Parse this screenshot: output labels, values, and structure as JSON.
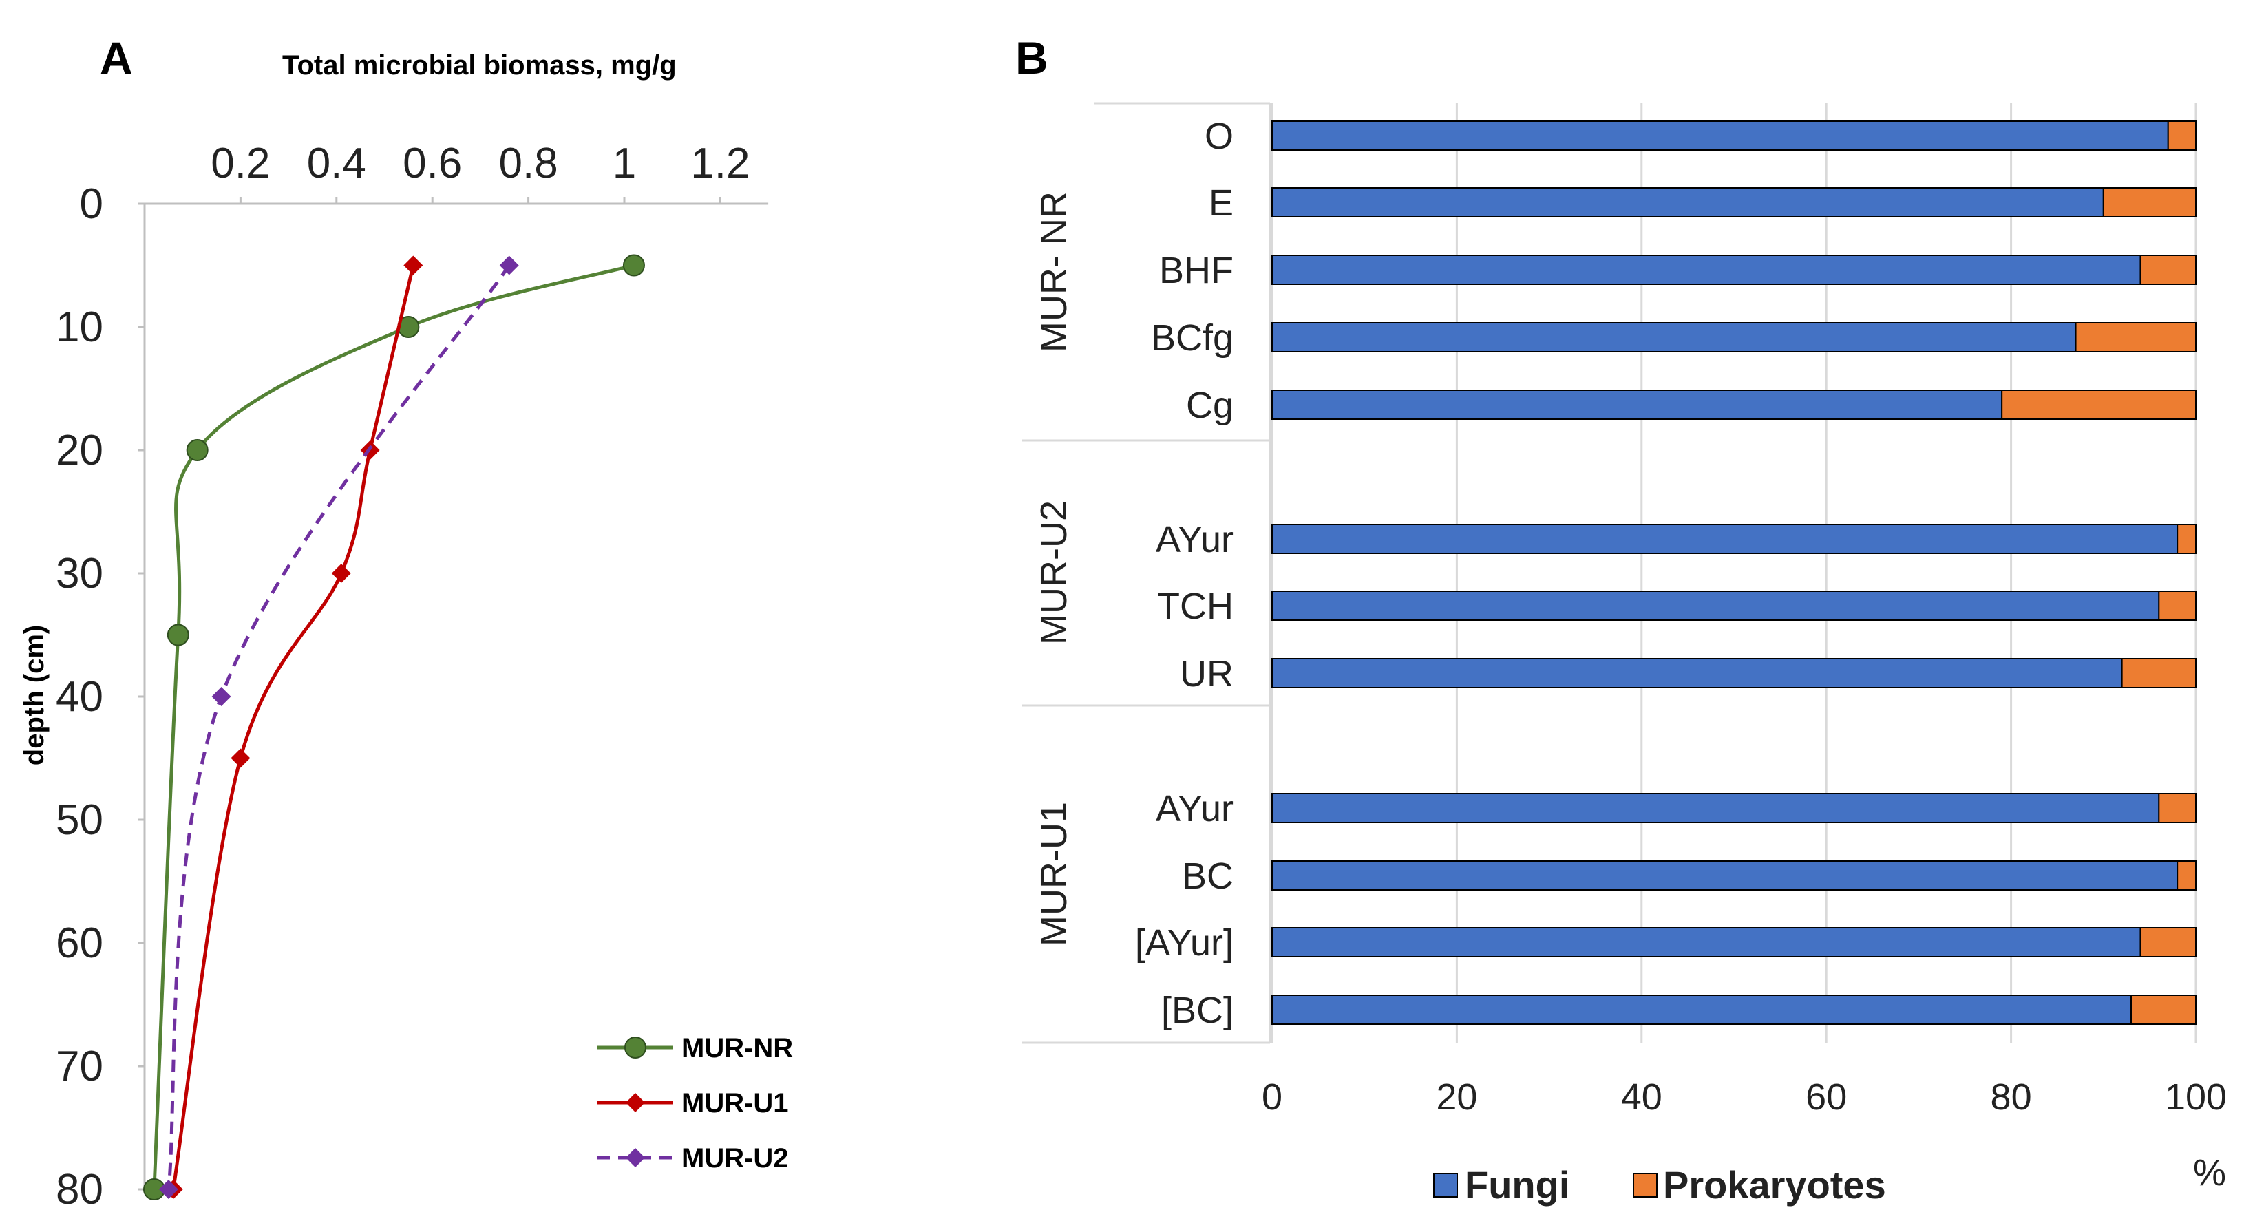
{
  "chart_data": [
    {
      "panel": "A",
      "type": "line",
      "title": "Total microbial biomass, mg/g",
      "xlabel": "Total microbial biomass, mg/g",
      "ylabel": "depth (cm)",
      "xlim": [
        0,
        1.3
      ],
      "ylim": [
        0,
        80
      ],
      "x_ticks": [
        "0.2",
        "0.4",
        "0.6",
        "0.8",
        "1",
        "1.2"
      ],
      "y_ticks": [
        "0",
        "10",
        "20",
        "30",
        "40",
        "50",
        "60",
        "70",
        "80"
      ],
      "grid": false,
      "legend_position": "bottom-right",
      "series": [
        {
          "name": "MUR-NR",
          "color": "#548235",
          "marker": "circle",
          "dash": "solid",
          "depth": [
            5,
            10,
            20,
            35,
            80
          ],
          "biomass": [
            1.02,
            0.55,
            0.11,
            0.07,
            0.02
          ]
        },
        {
          "name": "MUR-U1",
          "color": "#c00000",
          "marker": "diamond",
          "dash": "solid",
          "depth": [
            5,
            20,
            30,
            45,
            80
          ],
          "biomass": [
            0.56,
            0.47,
            0.41,
            0.2,
            0.06
          ]
        },
        {
          "name": "MUR-U2",
          "color": "#7030a0",
          "marker": "diamond",
          "dash": "dashed",
          "depth": [
            5,
            40,
            80
          ],
          "biomass": [
            0.76,
            0.16,
            0.05
          ]
        }
      ]
    },
    {
      "panel": "B",
      "type": "bar",
      "orientation": "horizontal-stacked",
      "xlabel": "%",
      "xlim": [
        0,
        100
      ],
      "x_ticks": [
        "0",
        "20",
        "40",
        "60",
        "80",
        "100"
      ],
      "grid": true,
      "legend_position": "bottom",
      "groups": [
        {
          "name": "MUR- NR",
          "categories": [
            "O",
            "E",
            "BHF",
            "BCfg",
            "Cg"
          ]
        },
        {
          "name": "MUR-U2",
          "categories": [
            "AYur",
            "TCH",
            "UR"
          ]
        },
        {
          "name": "MUR-U1",
          "categories": [
            "AYur",
            "BC",
            "[AYur]",
            "[BC]"
          ]
        }
      ],
      "series": [
        {
          "name": "Fungi",
          "color": "#4472c4",
          "values": [
            [
              97,
              90,
              94,
              87,
              79
            ],
            [
              98,
              96,
              92
            ],
            [
              96,
              98,
              94,
              93
            ]
          ]
        },
        {
          "name": "Prokaryotes",
          "color": "#ed7d31",
          "values": [
            [
              3,
              10,
              6,
              13,
              21
            ],
            [
              2,
              4,
              8
            ],
            [
              4,
              2,
              6,
              7
            ]
          ]
        }
      ]
    }
  ]
}
